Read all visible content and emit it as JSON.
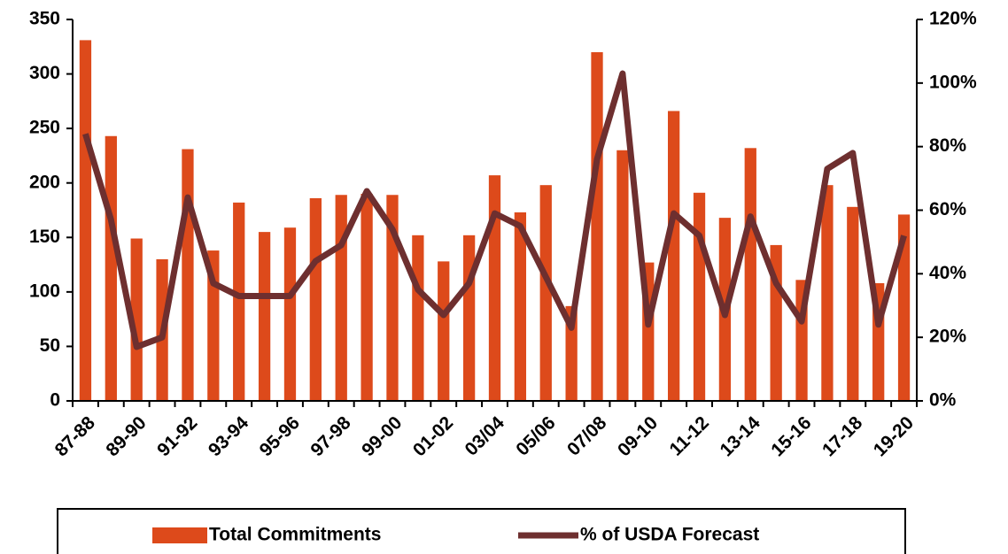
{
  "chart_data": {
    "type": "bar-line",
    "categories": [
      "87-88",
      null,
      "89-90",
      null,
      "91-92",
      null,
      "93-94",
      null,
      "95-96",
      null,
      "97-98",
      null,
      "99-00",
      null,
      "01-02",
      null,
      "03/04",
      null,
      "05/06",
      null,
      "07/08",
      null,
      "09-10",
      null,
      "11-12",
      null,
      "13-14",
      null,
      "15-16",
      null,
      "17-18",
      null,
      "19-20"
    ],
    "series": [
      {
        "name": "Total Commitments",
        "type": "bar",
        "color": "#dd4a1b",
        "values": [
          331,
          243,
          149,
          130,
          231,
          138,
          182,
          155,
          159,
          186,
          189,
          190,
          189,
          152,
          128,
          152,
          207,
          173,
          198,
          87,
          320,
          230,
          127,
          266,
          191,
          168,
          232,
          143,
          111,
          198,
          178,
          108,
          171
        ]
      },
      {
        "name": "% of USDA Forecast",
        "type": "line",
        "axis": "y2",
        "color": "#6e2f2f",
        "values": [
          84,
          57,
          17,
          20,
          64,
          37,
          33,
          33,
          33,
          44,
          49,
          66,
          54,
          35,
          27,
          37,
          59,
          55,
          39,
          23,
          76,
          103,
          24,
          59,
          52,
          27,
          58,
          37,
          25,
          73,
          78,
          24,
          52
        ]
      }
    ],
    "ylim": [
      0,
      350
    ],
    "yticks": [
      0,
      50,
      100,
      150,
      200,
      250,
      300,
      350
    ],
    "y2lim": [
      0,
      120
    ],
    "y2ticks": [
      {
        "value": 0,
        "label": "0%"
      },
      {
        "value": 20,
        "label": "20%"
      },
      {
        "value": 40,
        "label": "40%"
      },
      {
        "value": 60,
        "label": "60%"
      },
      {
        "value": 80,
        "label": "80%"
      },
      {
        "value": 100,
        "label": "100%"
      },
      {
        "value": 120,
        "label": "120%"
      }
    ],
    "legend": "bottom"
  }
}
